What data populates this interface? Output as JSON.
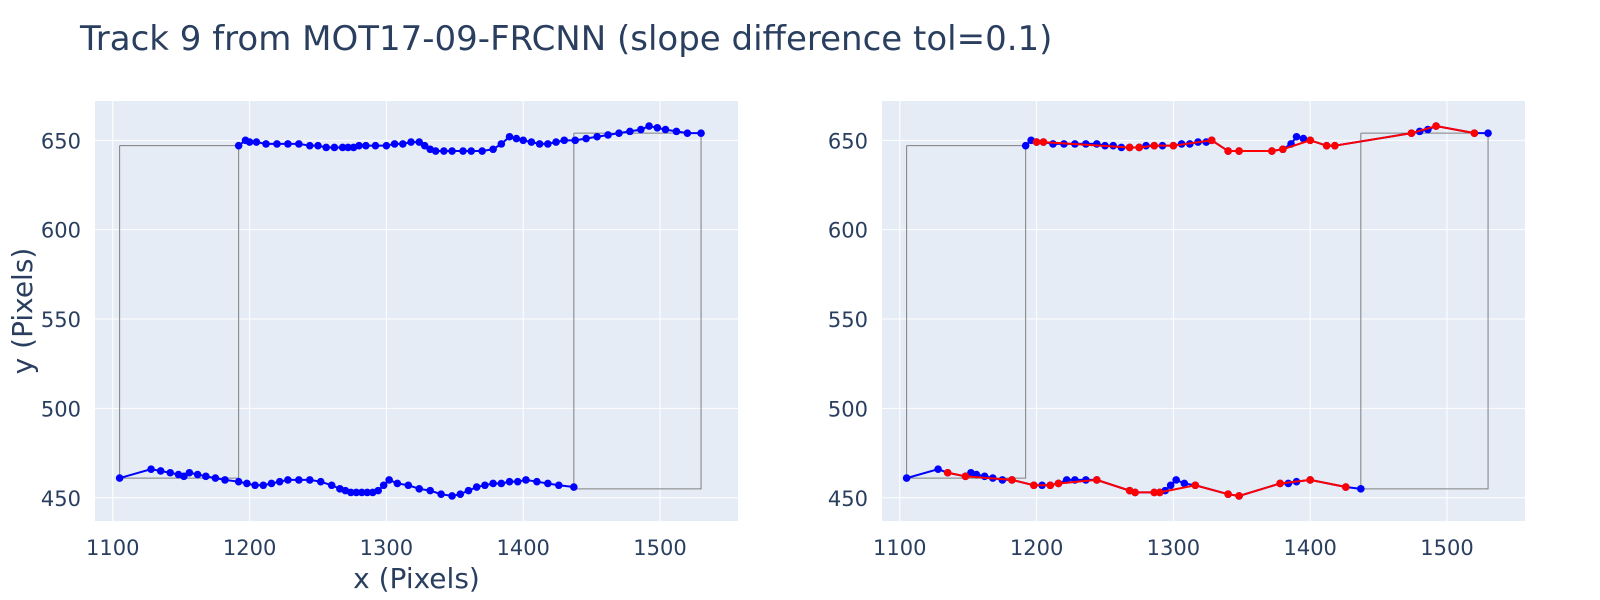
{
  "chart_data": {
    "type": "scatter",
    "title": "Track 9 from MOT17-09-FRCNN (slope difference tol=0.1)",
    "colors": {
      "trajectory": "#0000ff",
      "selected": "#ff0000",
      "box": "#7f7f7f",
      "plot_bg": "#e5ecf6",
      "grid": "#ffffff",
      "text": "#2a3f5f"
    },
    "subplots": [
      {
        "xlabel": "x (Pixels)",
        "ylabel": "y (Pixels)",
        "xlim": [
          1087,
          1557
        ],
        "ylim": [
          437,
          672
        ],
        "xticks": [
          1100,
          1200,
          1300,
          1400,
          1500
        ],
        "yticks": [
          450,
          500,
          550,
          600,
          650
        ],
        "grid": true,
        "boxes": [
          {
            "x0": 1105,
            "x1": 1192,
            "y0": 461,
            "y1": 647
          },
          {
            "x0": 1437,
            "x1": 1530,
            "y0": 455,
            "y1": 654
          }
        ],
        "series": [
          {
            "color": "blue",
            "x": [
              1192,
              1197,
              1200,
              1205,
              1212,
              1220,
              1228,
              1236,
              1244,
              1250,
              1256,
              1262,
              1268,
              1272,
              1276,
              1280,
              1285,
              1292,
              1300,
              1306,
              1312,
              1318,
              1324,
              1328,
              1332,
              1336,
              1342,
              1348,
              1356,
              1362,
              1370,
              1378,
              1384,
              1390,
              1395,
              1400,
              1406,
              1412,
              1418,
              1424,
              1430,
              1438,
              1446,
              1454,
              1462,
              1470,
              1478,
              1486,
              1492,
              1498,
              1504,
              1512,
              1520,
              1530
            ],
            "y": [
              647,
              650,
              649,
              649,
              648,
              648,
              648,
              648,
              647,
              647,
              646,
              646,
              646,
              646,
              646,
              647,
              647,
              647,
              647,
              648,
              648,
              649,
              649,
              647,
              645,
              644,
              644,
              644,
              644,
              644,
              644,
              645,
              648,
              652,
              651,
              650,
              649,
              648,
              648,
              649,
              650,
              650,
              651,
              652,
              653,
              654,
              655,
              656,
              658,
              657,
              656,
              655,
              654,
              654
            ]
          },
          {
            "color": "blue",
            "x": [
              1105,
              1128,
              1135,
              1142,
              1148,
              1152,
              1156,
              1162,
              1168,
              1175,
              1182,
              1192,
              1198,
              1204,
              1210,
              1216,
              1222,
              1228,
              1236,
              1244,
              1252,
              1260,
              1266,
              1270,
              1274,
              1278,
              1282,
              1286,
              1290,
              1294,
              1298,
              1302,
              1308,
              1316,
              1324,
              1332,
              1340,
              1348,
              1354,
              1360,
              1366,
              1372,
              1378,
              1384,
              1390,
              1396,
              1402,
              1410,
              1418,
              1426,
              1437
            ],
            "y": [
              461,
              466,
              465,
              464,
              463,
              462,
              464,
              463,
              462,
              461,
              460,
              459,
              458,
              457,
              457,
              458,
              459,
              460,
              460,
              460,
              459,
              457,
              455,
              454,
              453,
              453,
              453,
              453,
              453,
              454,
              457,
              460,
              458,
              457,
              455,
              454,
              452,
              451,
              452,
              454,
              456,
              457,
              458,
              458,
              459,
              459,
              460,
              459,
              458,
              457,
              456
            ]
          }
        ]
      },
      {
        "xlabel": "",
        "ylabel": "",
        "xlim": [
          1087,
          1557
        ],
        "ylim": [
          437,
          672
        ],
        "xticks": [
          1100,
          1200,
          1300,
          1400,
          1500
        ],
        "yticks": [
          450,
          500,
          550,
          600,
          650
        ],
        "grid": true,
        "boxes": [
          {
            "x0": 1105,
            "x1": 1192,
            "y0": 461,
            "y1": 647
          },
          {
            "x0": 1437,
            "x1": 1530,
            "y0": 455,
            "y1": 654
          }
        ],
        "series": [
          {
            "color": "blue",
            "x": [
              1192,
              1196,
              1200,
              1205,
              1212,
              1220,
              1228,
              1236,
              1244,
              1250,
              1256,
              1262,
              1268,
              1275,
              1280,
              1286,
              1292,
              1300,
              1306,
              1312,
              1318,
              1324,
              1328,
              1340,
              1348,
              1372,
              1380,
              1386,
              1390,
              1395,
              1400,
              1412,
              1418,
              1474,
              1480,
              1486,
              1492,
              1520,
              1530
            ],
            "y": [
              647,
              650,
              649,
              649,
              648,
              648,
              648,
              648,
              648,
              647,
              647,
              646,
              646,
              646,
              647,
              647,
              647,
              647,
              648,
              648,
              649,
              649,
              650,
              644,
              644,
              644,
              645,
              648,
              652,
              651,
              650,
              647,
              647,
              654,
              655,
              656,
              658,
              654,
              654
            ]
          },
          {
            "color": "blue",
            "x": [
              1105,
              1128,
              1135,
              1148,
              1152,
              1156,
              1162,
              1168,
              1175,
              1182,
              1198,
              1204,
              1210,
              1216,
              1222,
              1228,
              1236,
              1244,
              1268,
              1272,
              1286,
              1290,
              1294,
              1298,
              1302,
              1308,
              1316,
              1340,
              1348,
              1378,
              1384,
              1390,
              1400,
              1426,
              1437
            ],
            "y": [
              461,
              466,
              464,
              462,
              464,
              463,
              462,
              461,
              460,
              460,
              457,
              457,
              457,
              458,
              460,
              460,
              460,
              460,
              454,
              453,
              453,
              453,
              454,
              457,
              460,
              458,
              457,
              452,
              451,
              458,
              458,
              459,
              460,
              456,
              455
            ]
          },
          {
            "color": "red",
            "x": [
              1200,
              1205,
              1268,
              1275,
              1286,
              1300,
              1328,
              1340,
              1348,
              1372,
              1380,
              1400,
              1412,
              1418,
              1474,
              1492,
              1520
            ],
            "y": [
              649,
              649,
              646,
              646,
              647,
              647,
              650,
              644,
              644,
              644,
              645,
              650,
              647,
              647,
              654,
              658,
              654
            ]
          },
          {
            "color": "red",
            "x": [
              1135,
              1148,
              1182,
              1198,
              1210,
              1216,
              1244,
              1268,
              1272,
              1286,
              1290,
              1316,
              1340,
              1348,
              1378,
              1400,
              1426
            ],
            "y": [
              464,
              462,
              460,
              457,
              457,
              458,
              460,
              454,
              453,
              453,
              453,
              457,
              452,
              451,
              458,
              460,
              456
            ]
          }
        ]
      }
    ]
  }
}
